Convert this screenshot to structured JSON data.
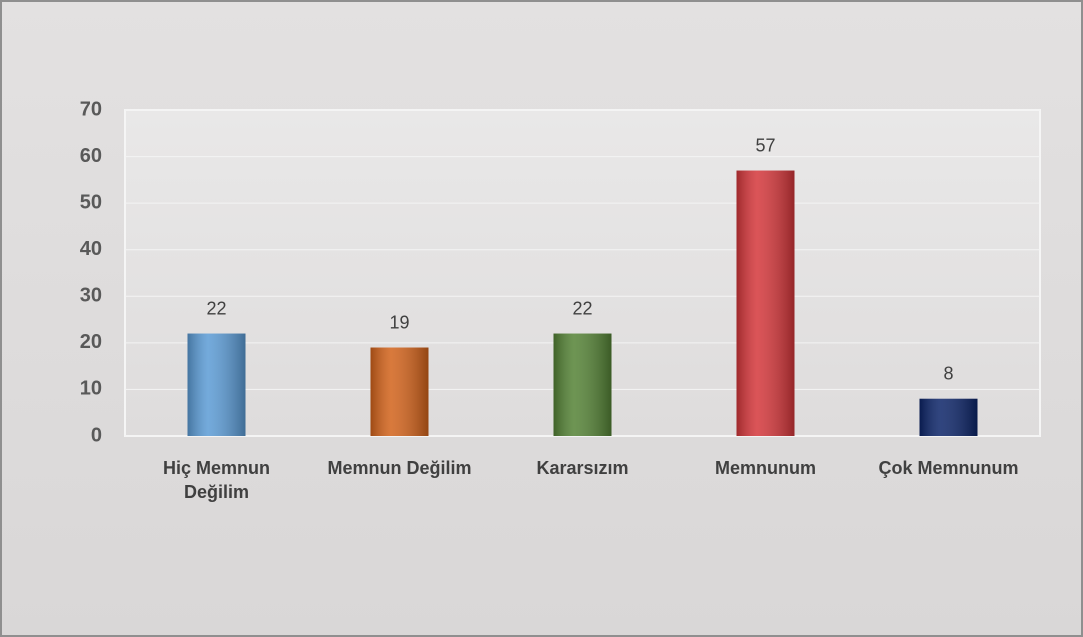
{
  "chart_data": {
    "type": "bar",
    "categories": [
      "Hiç Memnun Değilim",
      "Memnun Değilim",
      "Kararsızım",
      "Memnunum",
      "Çok Memnunum"
    ],
    "values": [
      22,
      19,
      22,
      57,
      8
    ],
    "colors": [
      "#5b9bd5",
      "#d2621a",
      "#548235",
      "#d4363a",
      "#0c2468"
    ],
    "ylim": [
      0,
      70
    ],
    "yticks": [
      0,
      10,
      20,
      30,
      40,
      50,
      60,
      70
    ],
    "grid": true
  }
}
